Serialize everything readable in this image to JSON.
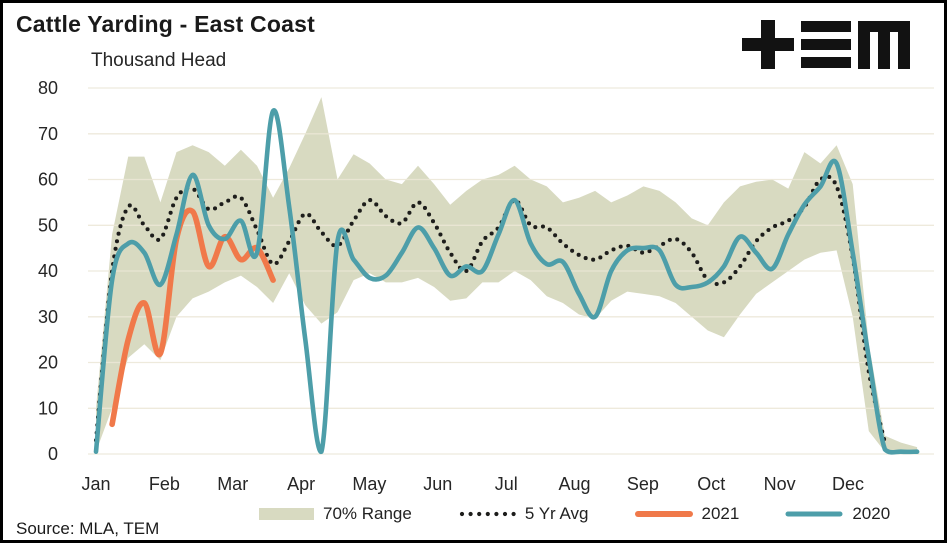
{
  "header": {
    "title": "Cattle Yarding - East Coast",
    "units_label": "Thousand Head",
    "logo_text": "TEM"
  },
  "footer": {
    "source": "Source: MLA, TEM"
  },
  "colors": {
    "band": "#d8dac1",
    "avg_dotted": "#1d1d1b",
    "y2021": "#f0794a",
    "y2020": "#4d9ea9",
    "gridline": "#ece7d7",
    "text": "#262626",
    "border": "#000000"
  },
  "chart_data": {
    "type": "line",
    "title": "Cattle Yarding - East Coast",
    "ylabel": "Thousand Head",
    "xlabel": "",
    "grid": "horizontal",
    "legend_position": "bottom",
    "x_axis": {
      "unit": "week-of-year",
      "tick_labels": [
        "Jan",
        "Feb",
        "Mar",
        "Apr",
        "May",
        "Jun",
        "Jul",
        "Aug",
        "Sep",
        "Oct",
        "Nov",
        "Dec"
      ]
    },
    "y_axis": {
      "min": 0,
      "max": 80,
      "step": 10,
      "ticks": [
        80,
        70,
        60,
        50,
        40,
        30,
        20,
        10,
        0
      ]
    },
    "weeks": 52,
    "series": [
      {
        "name": "70% Range",
        "type": "band",
        "color": "#d8dac1",
        "upper": [
          10,
          48,
          65,
          65,
          55,
          66,
          67.5,
          66,
          63,
          66.5,
          63,
          56,
          62.5,
          70,
          78,
          60,
          65.5,
          63.5,
          60,
          59,
          63,
          59,
          54.5,
          57.5,
          60,
          61,
          63,
          60,
          58.5,
          55,
          56,
          57.5,
          55,
          56.5,
          58.5,
          57.5,
          55,
          51.5,
          50,
          55,
          58.5,
          59.5,
          60,
          58,
          66,
          63.5,
          67.5,
          59,
          24,
          4,
          2.5,
          1.5
        ],
        "lower": [
          0.5,
          10,
          21,
          24,
          20.5,
          30,
          34,
          35.5,
          37.5,
          39,
          36.5,
          33,
          39.5,
          32.5,
          28.5,
          31,
          38,
          39.5,
          37.5,
          37.5,
          38.5,
          36.5,
          33.5,
          34,
          37.5,
          37.5,
          40,
          38,
          34.5,
          33,
          30.5,
          29.5,
          33.5,
          35.5,
          35,
          34.5,
          33,
          30,
          27,
          25.5,
          30.5,
          35,
          37.5,
          40,
          42.5,
          44,
          44.5,
          30,
          5,
          0.5,
          0.3,
          0.3
        ]
      },
      {
        "name": "5 Yr Avg",
        "type": "dotted-line",
        "color": "#1d1d1b",
        "values": [
          3,
          40,
          54,
          50,
          47,
          56,
          58,
          53.5,
          55,
          56,
          49,
          41.5,
          46.5,
          52.5,
          48.5,
          45.5,
          51,
          55.5,
          52,
          50.5,
          55,
          50.5,
          44,
          40,
          46.5,
          49.5,
          55.5,
          50,
          49.5,
          46,
          43.5,
          42.5,
          44.5,
          45.5,
          44,
          45.5,
          47,
          44,
          38,
          37.5,
          41,
          46.5,
          49.5,
          51,
          54,
          60,
          58.5,
          43,
          18,
          2.5,
          null,
          null
        ]
      },
      {
        "name": "2021",
        "type": "line",
        "color": "#f0794a",
        "values": [
          null,
          6.5,
          25,
          33,
          22,
          47,
          53,
          41,
          47.5,
          42.5,
          45,
          38,
          null,
          null,
          null,
          null,
          null,
          null,
          null,
          null,
          null,
          null,
          null,
          null,
          null,
          null,
          null,
          null,
          null,
          null,
          null,
          null,
          null,
          null,
          null,
          null,
          null,
          null,
          null,
          null,
          null,
          null,
          null,
          null,
          null,
          null,
          null,
          null,
          null,
          null,
          null,
          null
        ]
      },
      {
        "name": "2020",
        "type": "line",
        "color": "#4d9ea9",
        "values": [
          0.5,
          38,
          46,
          44,
          37,
          48,
          61,
          50,
          47,
          51,
          44,
          75,
          54,
          25,
          0.5,
          46.5,
          42.5,
          38.5,
          39,
          44,
          49.5,
          45,
          39,
          41,
          40,
          48,
          55.5,
          46,
          41.5,
          42,
          35,
          30,
          40,
          44.5,
          45,
          44.5,
          37,
          36.5,
          37.5,
          41,
          47.5,
          44,
          40.5,
          48,
          54.5,
          58.5,
          63.5,
          44,
          21,
          1,
          0.5,
          0.5
        ]
      }
    ]
  }
}
